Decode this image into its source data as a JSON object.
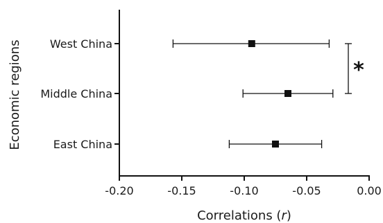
{
  "chart_data": {
    "type": "scatter",
    "subtype": "point-with-error-bars",
    "orientation": "horizontal",
    "xlabel_prefix": "Correlations (",
    "xlabel_var": "r",
    "xlabel_suffix": ")",
    "ylabel": "Economic regions",
    "xlim": [
      -0.2,
      0.0
    ],
    "xticks": [
      -0.2,
      -0.15,
      -0.1,
      -0.05,
      0.0
    ],
    "xtick_labels": [
      "-0.20",
      "-0.15",
      "-0.10",
      "-0.05",
      "0.00"
    ],
    "categories": [
      "West China",
      "Middle China",
      "East China"
    ],
    "points": [
      {
        "category": "West China",
        "estimate": -0.094,
        "ci_low": -0.157,
        "ci_high": -0.032
      },
      {
        "category": "Middle China",
        "estimate": -0.065,
        "ci_low": -0.101,
        "ci_high": -0.029
      },
      {
        "category": "East China",
        "estimate": -0.075,
        "ci_low": -0.112,
        "ci_high": -0.038
      }
    ],
    "significance": {
      "from": "West China",
      "to": "Middle China",
      "label": "*"
    },
    "grid": false,
    "legend": "none",
    "colors": {
      "marker": "#111111",
      "line": "#111111",
      "axis": "#111111"
    }
  }
}
